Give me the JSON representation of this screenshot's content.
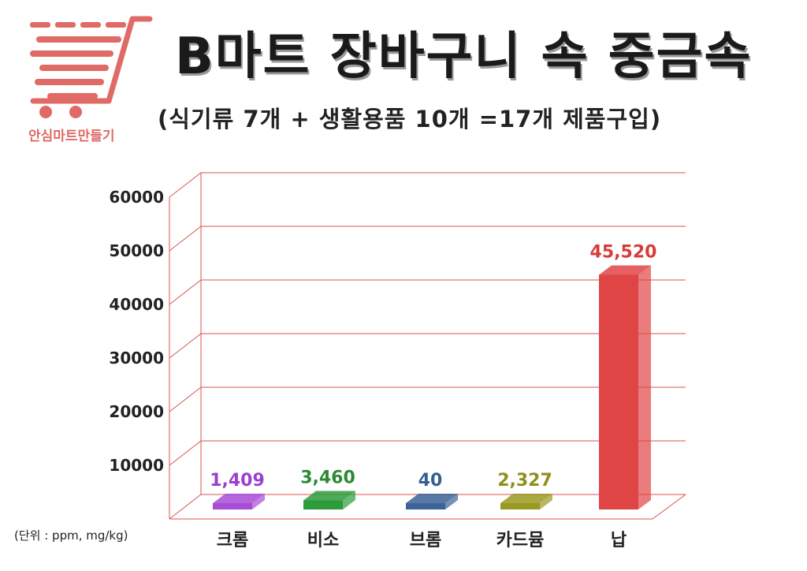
{
  "header": {
    "title": "B마트 장바구니 속 중금속",
    "subtitle": "(식기류 7개 + 생활용품 10개 =17개 제품구입)",
    "logo_text": "안심마트만들기"
  },
  "unit_note": "(단위 : ppm, mg/kg)",
  "colors": {
    "grid": "#d9534f",
    "logo": "#e06a65"
  },
  "chart_data": {
    "type": "bar",
    "categories": [
      "크롬",
      "비소",
      "브롬",
      "카드뮴",
      "납"
    ],
    "values": [
      1409,
      3460,
      40,
      2327,
      45520
    ],
    "value_labels": [
      "1,409",
      "3,460",
      "40",
      "2,327",
      "45,520"
    ],
    "bar_colors": [
      "#a84bd6",
      "#2e9b3a",
      "#3c6296",
      "#9a9a22",
      "#e04545"
    ],
    "label_colors": [
      "#9b3fd0",
      "#2b8a33",
      "#35608f",
      "#8f8f1f",
      "#d93a3a"
    ],
    "yticks": [
      10000,
      20000,
      30000,
      40000,
      50000,
      60000
    ],
    "ylim": [
      0,
      60000
    ],
    "grid": true,
    "style": "3d"
  }
}
